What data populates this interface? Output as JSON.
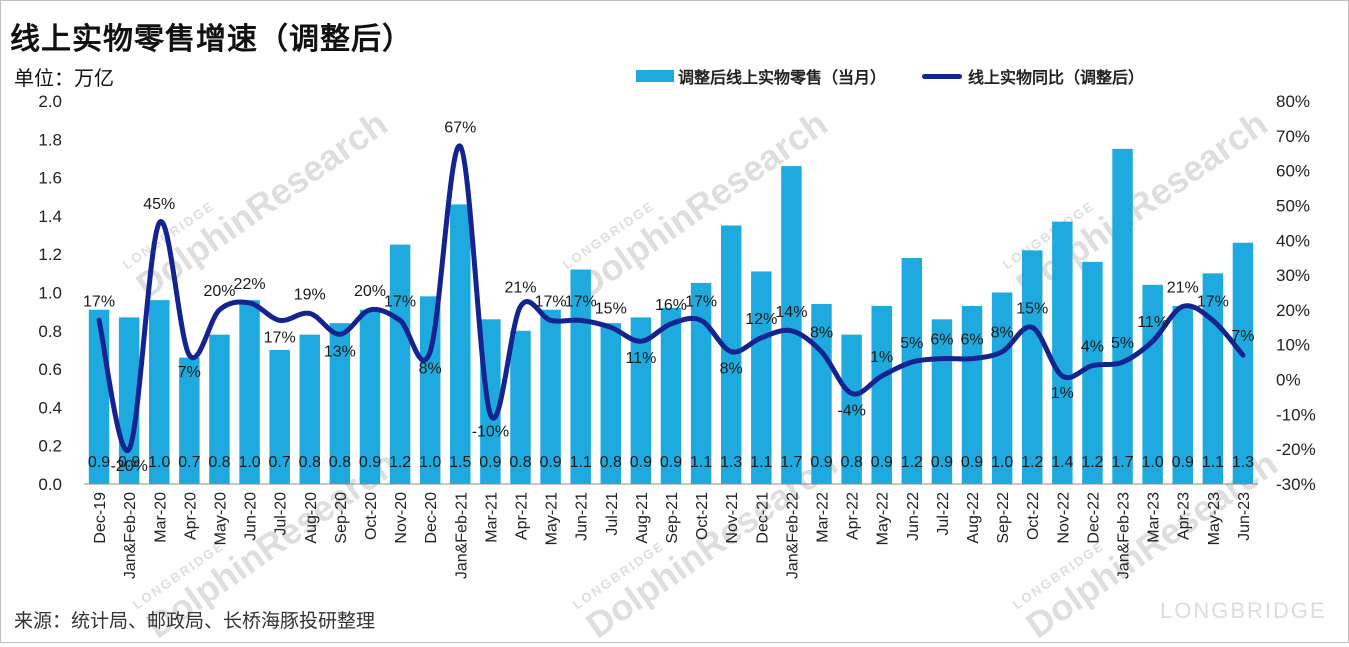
{
  "title": "线上实物零售增速（调整后）",
  "unit_label": "单位：万亿",
  "source": "来源：统计局、邮政局、长桥海豚投研整理",
  "watermark": {
    "small": "LONGBRIDGE",
    "big": "DolphinResearch",
    "brand": "LONGBRIDGE"
  },
  "colors": {
    "bar": "#1eaadf",
    "line": "#13238f"
  },
  "chart_data": {
    "type": "bar",
    "categories": [
      "Dec-19",
      "Jan&Feb-20",
      "Mar-20",
      "Apr-20",
      "May-20",
      "Jun-20",
      "Jul-20",
      "Aug-20",
      "Sep-20",
      "Oct-20",
      "Nov-20",
      "Dec-20",
      "Jan&Feb-21",
      "Mar-21",
      "Apr-21",
      "May-21",
      "Jun-21",
      "Jul-21",
      "Aug-21",
      "Sep-21",
      "Oct-21",
      "Nov-21",
      "Dec-21",
      "Jan&Feb-22",
      "Mar-22",
      "Apr-22",
      "May-22",
      "Jun-22",
      "Jul-22",
      "Aug-22",
      "Sep-22",
      "Oct-22",
      "Nov-22",
      "Dec-22",
      "Jan&Feb-23",
      "Mar-23",
      "Apr-23",
      "May-23",
      "Jun-23"
    ],
    "series": [
      {
        "name": "调整后线上实物零售（当月）",
        "type": "bar",
        "axis": "left",
        "values": [
          0.91,
          0.87,
          0.96,
          0.66,
          0.78,
          0.96,
          0.7,
          0.78,
          0.84,
          0.91,
          1.25,
          0.98,
          1.46,
          0.86,
          0.8,
          0.91,
          1.12,
          0.84,
          0.87,
          0.92,
          1.05,
          1.35,
          1.11,
          1.66,
          0.94,
          0.78,
          0.93,
          1.18,
          0.86,
          0.93,
          1.0,
          1.22,
          1.37,
          1.16,
          1.75,
          1.04,
          0.93,
          1.1,
          1.26
        ],
        "labels": [
          "0.9",
          "0.9",
          "1.0",
          "0.7",
          "0.8",
          "1.0",
          "0.7",
          "0.8",
          "0.8",
          "0.9",
          "1.2",
          "1.0",
          "1.5",
          "0.9",
          "0.8",
          "0.9",
          "1.1",
          "0.8",
          "0.9",
          "0.9",
          "1.1",
          "1.3",
          "1.1",
          "1.7",
          "0.9",
          "0.8",
          "0.9",
          "1.2",
          "0.9",
          "0.9",
          "1.0",
          "1.2",
          "1.4",
          "1.2",
          "1.7",
          "1.0",
          "0.9",
          "1.1",
          "1.3"
        ]
      },
      {
        "name": "线上实物同比（调整后）",
        "type": "line",
        "axis": "right",
        "values": [
          17,
          -20,
          45,
          7,
          20,
          22,
          17,
          19,
          13,
          20,
          17,
          8,
          67,
          -10,
          21,
          17,
          17,
          15,
          11,
          16,
          17,
          8,
          12,
          14,
          8,
          -4,
          1,
          5,
          6,
          6,
          8,
          15,
          1,
          4,
          5,
          11,
          21,
          17,
          7
        ],
        "labels": [
          "17%",
          "-20%",
          "45%",
          "7%",
          "20%",
          "22%",
          "17%",
          "19%",
          "13%",
          "20%",
          "17%",
          "8%",
          "67%",
          "-10%",
          "21%",
          "17%",
          "17%",
          "15%",
          "11%",
          "16%",
          "17%",
          "8%",
          "12%",
          "14%",
          "8%",
          "-4%",
          "1%",
          "5%",
          "6%",
          "6%",
          "8%",
          "15%",
          "1%",
          "4%",
          "5%",
          "11%",
          "21%",
          "17%",
          "7%"
        ]
      }
    ],
    "y_left": {
      "min": 0,
      "max": 2.0,
      "ticks": [
        "0.0",
        "0.2",
        "0.4",
        "0.6",
        "0.8",
        "1.0",
        "1.2",
        "1.4",
        "1.6",
        "1.8",
        "2.0"
      ]
    },
    "y_right": {
      "min": -30,
      "max": 80,
      "ticks": [
        "-30%",
        "-20%",
        "-10%",
        "0%",
        "10%",
        "20%",
        "30%",
        "40%",
        "50%",
        "60%",
        "70%",
        "80%"
      ]
    },
    "grid": false,
    "legend_position": "top-right"
  }
}
